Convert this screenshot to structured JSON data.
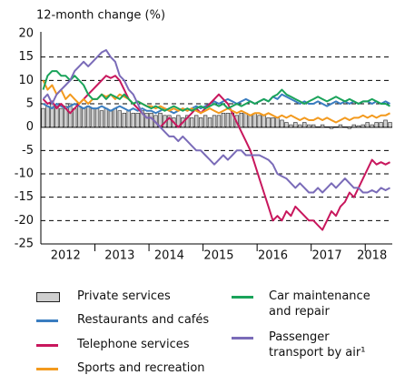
{
  "chart_data": {
    "type": "line",
    "ylabel": "12-month change (%)",
    "ylim": [
      -25,
      20
    ],
    "yticks": [
      -25,
      -20,
      -15,
      -10,
      -5,
      0,
      5,
      10,
      15,
      20
    ],
    "grid": true,
    "categories": [
      null,
      null,
      null,
      null,
      null,
      "2012",
      null,
      null,
      null,
      null,
      null,
      null,
      null,
      null,
      null,
      null,
      null,
      "2013",
      null,
      null,
      null,
      null,
      null,
      null,
      null,
      null,
      null,
      null,
      "2014",
      null,
      null,
      null,
      null,
      null,
      null,
      null,
      null,
      null,
      null,
      "2015",
      null,
      null,
      null,
      null,
      null,
      null,
      null,
      null,
      null,
      null,
      null,
      "2016",
      null,
      null,
      null,
      null,
      null,
      null,
      null,
      null,
      null,
      null,
      null,
      "2017",
      null,
      null,
      null,
      null,
      null,
      null,
      null,
      null,
      null,
      "2018",
      null,
      null,
      null,
      null
    ],
    "series": [
      {
        "name": "Private services",
        "type": "bar",
        "color": "#cfcfcf",
        "values": [
          4,
          4.5,
          5,
          4.5,
          4,
          4.5,
          5,
          4,
          4.5,
          4,
          4.5,
          4,
          4,
          3.5,
          4,
          3.5,
          4,
          3.5,
          3,
          3.5,
          3,
          3,
          3.5,
          3,
          3,
          2.5,
          3,
          2.5,
          2.5,
          2,
          2.5,
          2,
          2.5,
          2,
          2.5,
          2,
          2.5,
          2,
          2.5,
          2.5,
          3,
          3,
          3,
          2.5,
          3,
          3,
          2.5,
          3,
          2.5,
          2.5,
          2,
          2,
          2,
          1.5,
          1,
          0.5,
          1,
          0.5,
          1,
          0.5,
          0.5,
          0,
          0.5,
          0,
          -0.3,
          0,
          0.5,
          0,
          -0.3,
          0.5,
          0.3,
          0.5,
          1,
          0.5,
          1,
          1,
          1.5,
          1
        ]
      },
      {
        "name": "Restaurants and cafés",
        "type": "line",
        "color": "#3a7dc0",
        "values": [
          5,
          4.5,
          4,
          5,
          4.5,
          4,
          4.5,
          5,
          4.5,
          4,
          4.5,
          4,
          4,
          4.5,
          4,
          3.5,
          4,
          4.5,
          4,
          3.5,
          4,
          3.5,
          4,
          3.5,
          3.5,
          3,
          3.5,
          4,
          3.5,
          3,
          3.5,
          4,
          3.5,
          4,
          4.5,
          4,
          4.5,
          5,
          5.5,
          5,
          5.5,
          6,
          5.5,
          5,
          5.5,
          6,
          5.5,
          5,
          5.5,
          6,
          5.5,
          6.5,
          6,
          7,
          6.5,
          6,
          5.5,
          5,
          5.5,
          5,
          5,
          5.5,
          5,
          4.5,
          5,
          5.5,
          5,
          5.5,
          5,
          5.5,
          5,
          5.5,
          5.5,
          5,
          5.5,
          5,
          5.5,
          5
        ]
      },
      {
        "name": "Telephone services",
        "type": "line",
        "color": "#c8175d",
        "values": [
          6,
          5,
          5.5,
          4,
          5,
          4,
          3,
          4,
          5,
          6,
          7,
          8,
          9,
          10,
          11,
          10.5,
          11,
          10,
          8,
          6,
          5,
          4,
          3,
          2,
          2,
          1,
          0,
          1,
          2,
          1,
          0,
          1,
          2,
          3,
          4,
          3,
          4,
          5,
          6,
          7,
          6,
          5,
          3,
          1,
          -1,
          -3,
          -5,
          -8,
          -11,
          -14,
          -17,
          -20,
          -19,
          -20,
          -18,
          -19,
          -17,
          -18,
          -19,
          -20,
          -20,
          -21,
          -22,
          -20,
          -18,
          -19,
          -17,
          -16,
          -14,
          -15,
          -13,
          -11,
          -9,
          -7,
          -8,
          -7.5,
          -8,
          -7.5
        ]
      },
      {
        "name": "Sports and recreation",
        "type": "line",
        "color": "#f39a1e",
        "values": [
          10,
          8,
          9,
          7,
          8,
          6,
          7,
          6,
          5,
          6,
          5,
          6,
          6,
          7,
          6.5,
          7,
          6,
          7,
          6.5,
          6,
          5,
          5.5,
          5,
          4.5,
          4.5,
          4,
          4.5,
          4,
          3.5,
          4,
          3.5,
          4,
          3.5,
          4,
          3.5,
          3,
          3.5,
          4,
          3.5,
          3,
          3.5,
          4,
          3.5,
          3,
          3.5,
          3,
          2.5,
          3,
          3,
          2.5,
          3,
          2.5,
          2,
          2.5,
          2,
          2.5,
          2,
          1.5,
          2,
          1.5,
          1.5,
          2,
          1.5,
          2,
          1.5,
          1,
          1.5,
          2,
          1.5,
          2,
          2,
          2.5,
          2,
          2.5,
          2,
          2.5,
          2.5,
          3
        ]
      },
      {
        "name": "Car maintenance and repair",
        "type": "line",
        "color": "#1aa35a",
        "values": [
          8,
          11,
          12,
          12,
          11,
          11,
          10,
          11,
          10,
          9,
          7,
          6,
          6,
          7,
          6,
          7,
          6.5,
          6,
          7,
          6,
          5,
          5.5,
          5,
          4.5,
          4,
          4.5,
          4,
          3.5,
          4,
          4.5,
          4,
          3.5,
          4,
          3.5,
          4,
          4.5,
          4,
          4.5,
          5,
          4.5,
          5,
          4,
          4.5,
          5,
          4.5,
          5,
          5.5,
          5,
          5.5,
          6,
          5.5,
          6.5,
          7,
          8,
          7,
          6.5,
          6,
          5.5,
          5,
          5.5,
          6,
          6.5,
          6,
          5.5,
          6,
          6.5,
          6,
          5.5,
          6,
          5.5,
          5,
          5.5,
          5.5,
          6,
          5.5,
          5,
          5,
          4.5
        ]
      },
      {
        "name": "Passenger transport by air¹",
        "type": "line",
        "color": "#7a6bb8",
        "values": [
          6,
          7,
          5,
          7,
          8,
          9,
          10,
          12,
          13,
          14,
          13,
          14,
          15,
          16,
          16.5,
          15,
          14,
          11,
          10,
          8,
          7,
          5,
          3,
          2,
          2,
          1,
          0,
          -1,
          -2,
          -2,
          -3,
          -2,
          -3,
          -4,
          -5,
          -5,
          -6,
          -7,
          -8,
          -7,
          -6,
          -7,
          -6,
          -5,
          -5,
          -6,
          -6,
          -6,
          -6,
          -6.5,
          -7,
          -8,
          -10,
          -10.5,
          -11,
          -12,
          -13,
          -12,
          -13,
          -14,
          -14,
          -13,
          -14,
          -13,
          -12,
          -13,
          -12,
          -11,
          -12,
          -13,
          -13,
          -14,
          -14,
          -13.5,
          -14,
          -13,
          -13.5,
          -13
        ]
      }
    ]
  }
}
